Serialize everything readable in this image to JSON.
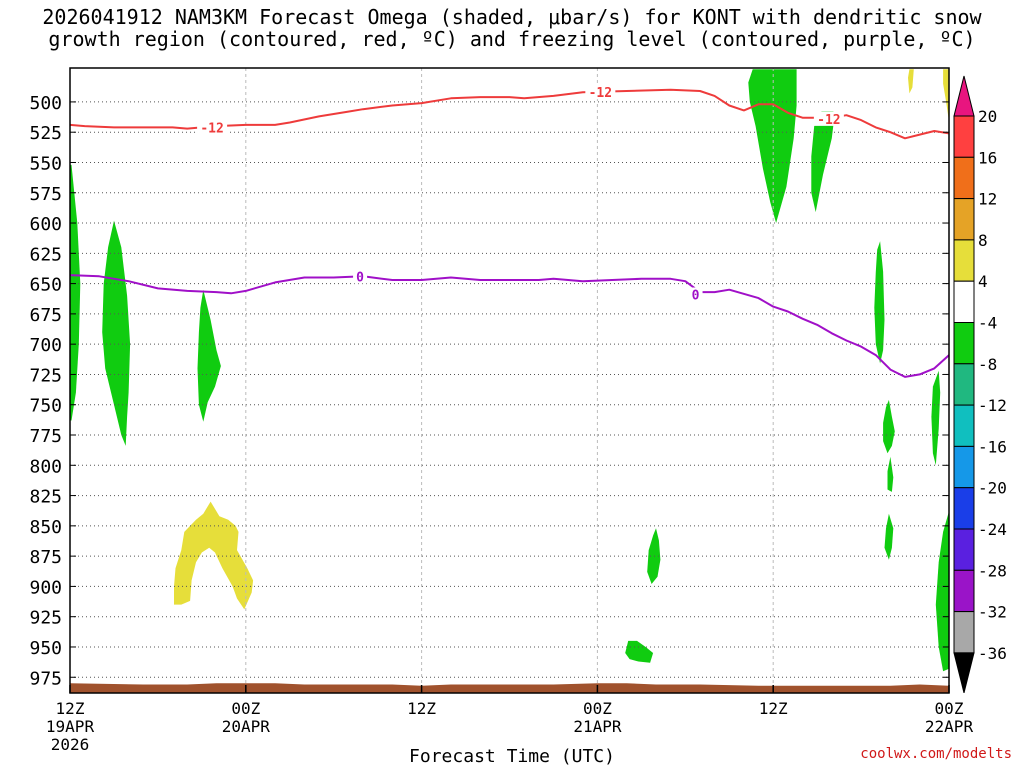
{
  "title": {
    "line1": "2026041912 NAM3KM Forecast Omega (shaded, μbar/s) for KONT with dendritic snow",
    "line2": "growth region (contoured, red, ºC) and freezing level (contoured, purple, ºC)"
  },
  "credit": "coolwx.com/modelts",
  "chart_data": {
    "type": "area",
    "title": "2026041912 NAM3KM Forecast Omega (shaded, μbar/s) for KONT with dendritic snow growth region (contoured, red, ºC) and freezing level (contoured, purple, ºC)",
    "xlabel": "Forecast Time (UTC)",
    "ylabel": "",
    "xlim_hours": [
      0,
      60
    ],
    "ylim_hPa": [
      988,
      472
    ],
    "y_axis": "pressure (hPa), reversed",
    "grid": true,
    "x_ticks": [
      {
        "hour": 0,
        "label": "12Z",
        "sub1": "19APR",
        "sub2": "2026"
      },
      {
        "hour": 12,
        "label": "00Z",
        "sub1": "20APR",
        "sub2": ""
      },
      {
        "hour": 24,
        "label": "12Z",
        "sub1": "",
        "sub2": ""
      },
      {
        "hour": 36,
        "label": "00Z",
        "sub1": "21APR",
        "sub2": ""
      },
      {
        "hour": 48,
        "label": "12Z",
        "sub1": "",
        "sub2": ""
      },
      {
        "hour": 60,
        "label": "00Z",
        "sub1": "22APR",
        "sub2": ""
      }
    ],
    "y_ticks": [
      500,
      525,
      550,
      575,
      600,
      625,
      650,
      675,
      700,
      725,
      750,
      775,
      800,
      825,
      850,
      875,
      900,
      925,
      950,
      975
    ],
    "colorbar": {
      "labels": [
        "20",
        "16",
        "12",
        "8",
        "4",
        "-4",
        "-8",
        "-12",
        "-16",
        "-20",
        "-24",
        "-28",
        "-32",
        "-36"
      ],
      "bins": [
        {
          "color": "#e8157f"
        },
        {
          "color": "#ff4040"
        },
        {
          "color": "#f06f1a"
        },
        {
          "color": "#e5a326"
        },
        {
          "color": "#e6de3a"
        },
        {
          "color": "#ffffff"
        },
        {
          "color": "#10cc10"
        },
        {
          "color": "#20b880"
        },
        {
          "color": "#10bfbf"
        },
        {
          "color": "#1598e8"
        },
        {
          "color": "#1a3ee8"
        },
        {
          "color": "#5a20e0"
        },
        {
          "color": "#9a14c8"
        },
        {
          "color": "#a8a8a8"
        },
        {
          "color": "#000000"
        }
      ]
    },
    "series": [
      {
        "name": "-12",
        "color": "#ee3b3b",
        "label_points": [
          [
            9.7,
            521
          ],
          [
            36.2,
            492
          ],
          [
            51.8,
            514
          ]
        ],
        "points": [
          [
            0,
            519
          ],
          [
            1,
            520
          ],
          [
            3,
            521
          ],
          [
            5,
            521
          ],
          [
            7,
            521
          ],
          [
            8,
            522
          ],
          [
            9,
            521
          ],
          [
            10,
            520
          ],
          [
            12,
            519
          ],
          [
            14,
            519
          ],
          [
            15,
            517
          ],
          [
            17,
            512
          ],
          [
            19,
            508
          ],
          [
            20,
            506
          ],
          [
            22,
            503
          ],
          [
            24,
            501
          ],
          [
            26,
            497
          ],
          [
            28,
            496
          ],
          [
            30,
            496
          ],
          [
            31,
            497
          ],
          [
            33,
            495
          ],
          [
            35,
            492
          ],
          [
            38,
            491
          ],
          [
            41,
            490
          ],
          [
            43,
            491
          ],
          [
            44,
            495
          ],
          [
            45,
            503
          ],
          [
            46,
            507
          ],
          [
            47,
            502
          ],
          [
            48,
            502
          ],
          [
            49,
            509
          ],
          [
            50,
            513
          ],
          [
            52,
            513
          ],
          [
            53,
            511
          ],
          [
            54,
            515
          ],
          [
            55,
            521
          ],
          [
            56,
            525
          ],
          [
            57,
            530
          ],
          [
            58,
            527
          ],
          [
            59,
            524
          ],
          [
            60,
            526
          ]
        ]
      },
      {
        "name": "0",
        "color": "#a010c8",
        "label_points": [
          [
            19.8,
            644
          ],
          [
            42.7,
            659
          ]
        ],
        "points": [
          [
            0,
            643
          ],
          [
            2,
            644
          ],
          [
            4,
            648
          ],
          [
            6,
            654
          ],
          [
            8,
            656
          ],
          [
            10,
            657
          ],
          [
            11,
            658
          ],
          [
            12,
            656
          ],
          [
            14,
            649
          ],
          [
            16,
            645
          ],
          [
            18,
            645
          ],
          [
            20,
            644
          ],
          [
            22,
            647
          ],
          [
            24,
            647
          ],
          [
            26,
            645
          ],
          [
            28,
            647
          ],
          [
            30,
            647
          ],
          [
            32,
            647
          ],
          [
            33,
            646
          ],
          [
            35,
            648
          ],
          [
            37,
            647
          ],
          [
            39,
            646
          ],
          [
            41,
            646
          ],
          [
            42,
            648
          ],
          [
            43,
            657
          ],
          [
            44,
            657
          ],
          [
            45,
            655
          ],
          [
            47,
            662
          ],
          [
            48,
            669
          ],
          [
            49,
            673
          ],
          [
            50,
            679
          ],
          [
            51,
            684
          ],
          [
            52,
            691
          ],
          [
            53,
            697
          ],
          [
            54,
            702
          ],
          [
            55,
            709
          ],
          [
            56,
            721
          ],
          [
            57,
            727
          ],
          [
            58,
            725
          ],
          [
            59,
            720
          ],
          [
            60,
            709
          ]
        ]
      }
    ],
    "shaded": [
      {
        "value_range": "-8 to -4",
        "color": "#10cc10",
        "points": [
          [
            0.1,
            552
          ],
          [
            0.5,
            600
          ],
          [
            0.7,
            650
          ],
          [
            0.6,
            700
          ],
          [
            0.4,
            740
          ],
          [
            0.1,
            763
          ],
          [
            0,
            763
          ],
          [
            0,
            552
          ]
        ]
      },
      {
        "value_range": "-8 to -4",
        "color": "#10cc10",
        "points": [
          [
            3.0,
            598
          ],
          [
            3.5,
            620
          ],
          [
            3.9,
            660
          ],
          [
            4.1,
            700
          ],
          [
            4.0,
            740
          ],
          [
            3.9,
            760
          ],
          [
            3.8,
            784
          ],
          [
            3.5,
            775
          ],
          [
            3.0,
            750
          ],
          [
            2.4,
            720
          ],
          [
            2.2,
            690
          ],
          [
            2.3,
            650
          ],
          [
            2.6,
            620
          ]
        ]
      },
      {
        "value_range": "-8 to -4",
        "color": "#10cc10",
        "points": [
          [
            9.1,
            655
          ],
          [
            9.6,
            680
          ],
          [
            10.0,
            705
          ],
          [
            10.3,
            718
          ],
          [
            9.9,
            735
          ],
          [
            9.4,
            748
          ],
          [
            9.1,
            764
          ],
          [
            8.8,
            750
          ],
          [
            8.7,
            720
          ],
          [
            8.8,
            690
          ],
          [
            8.9,
            670
          ]
        ]
      },
      {
        "value_range": "4 to 8",
        "color": "#e6de3a",
        "points": [
          [
            7.1,
            900
          ],
          [
            7.2,
            885
          ],
          [
            7.6,
            870
          ],
          [
            7.8,
            855
          ],
          [
            8.6,
            845
          ],
          [
            9.1,
            840
          ],
          [
            9.6,
            830
          ],
          [
            10.2,
            842
          ],
          [
            10.8,
            845
          ],
          [
            11.3,
            850
          ],
          [
            11.5,
            855
          ],
          [
            11.4,
            870
          ],
          [
            12.1,
            885
          ],
          [
            12.5,
            895
          ],
          [
            12.4,
            905
          ],
          [
            11.9,
            919
          ],
          [
            11.4,
            910
          ],
          [
            11.1,
            900
          ],
          [
            10.4,
            885
          ],
          [
            9.9,
            872
          ],
          [
            9.5,
            868
          ],
          [
            9.0,
            872
          ],
          [
            8.6,
            880
          ],
          [
            8.3,
            895
          ],
          [
            8.2,
            912
          ],
          [
            7.6,
            915
          ],
          [
            7.1,
            915
          ]
        ]
      },
      {
        "value_range": "-8 to -4",
        "color": "#10cc10",
        "points": [
          [
            38.1,
            945
          ],
          [
            38.7,
            945
          ],
          [
            39.3,
            950
          ],
          [
            39.8,
            955
          ],
          [
            39.6,
            963
          ],
          [
            38.8,
            962
          ],
          [
            38.2,
            960
          ],
          [
            37.9,
            955
          ]
        ]
      },
      {
        "value_range": "-8 to -4",
        "color": "#10cc10",
        "points": [
          [
            40.0,
            852
          ],
          [
            40.2,
            862
          ],
          [
            40.3,
            878
          ],
          [
            40.1,
            892
          ],
          [
            39.7,
            898
          ],
          [
            39.4,
            888
          ],
          [
            39.5,
            870
          ],
          [
            39.8,
            858
          ]
        ]
      },
      {
        "value_range": "-8 to -4",
        "color": "#10cc10",
        "points": [
          [
            48.0,
            473
          ],
          [
            49.6,
            473
          ],
          [
            49.6,
            503
          ],
          [
            49.4,
            530
          ],
          [
            48.9,
            570
          ],
          [
            48.2,
            600
          ],
          [
            47.8,
            583
          ],
          [
            47.3,
            555
          ],
          [
            46.8,
            520
          ],
          [
            46.4,
            500
          ],
          [
            46.3,
            484
          ],
          [
            46.6,
            473
          ]
        ]
      },
      {
        "value_range": "-8 to -4",
        "color": "#10cc10",
        "points": [
          [
            51.3,
            508
          ],
          [
            52.1,
            508
          ],
          [
            52.2,
            510
          ],
          [
            52.0,
            530
          ],
          [
            51.4,
            560
          ],
          [
            50.9,
            591
          ],
          [
            50.6,
            575
          ],
          [
            50.6,
            545
          ],
          [
            50.8,
            520
          ]
        ]
      },
      {
        "value_range": "-8 to -4",
        "color": "#10cc10",
        "points": [
          [
            55.3,
            615
          ],
          [
            55.5,
            640
          ],
          [
            55.6,
            680
          ],
          [
            55.5,
            705
          ],
          [
            55.3,
            716
          ],
          [
            55.0,
            700
          ],
          [
            54.9,
            670
          ],
          [
            55.0,
            640
          ],
          [
            55.1,
            622
          ]
        ]
      },
      {
        "value_range": "-8 to -4",
        "color": "#10cc10",
        "points": [
          [
            55.9,
            746
          ],
          [
            56.1,
            760
          ],
          [
            56.3,
            772
          ],
          [
            56.1,
            784
          ],
          [
            55.8,
            790
          ],
          [
            55.5,
            780
          ],
          [
            55.5,
            765
          ],
          [
            55.7,
            752
          ]
        ]
      },
      {
        "value_range": "-8 to -4",
        "color": "#10cc10",
        "points": [
          [
            56.0,
            793
          ],
          [
            56.2,
            810
          ],
          [
            56.1,
            822
          ],
          [
            55.8,
            820
          ],
          [
            55.8,
            805
          ]
        ]
      },
      {
        "value_range": "-8 to -4",
        "color": "#10cc10",
        "points": [
          [
            55.9,
            840
          ],
          [
            56.2,
            852
          ],
          [
            56.1,
            868
          ],
          [
            55.9,
            878
          ],
          [
            55.6,
            868
          ],
          [
            55.7,
            852
          ]
        ]
      },
      {
        "value_range": "-8 to -4",
        "color": "#10cc10",
        "points": [
          [
            59.3,
            722
          ],
          [
            59.4,
            740
          ],
          [
            59.3,
            770
          ],
          [
            59.1,
            800
          ],
          [
            58.9,
            790
          ],
          [
            58.8,
            760
          ],
          [
            58.9,
            735
          ]
        ]
      },
      {
        "value_range": "-8 to -4",
        "color": "#10cc10",
        "points": [
          [
            60,
            838
          ],
          [
            60,
            968
          ],
          [
            59.6,
            970
          ],
          [
            59.3,
            950
          ],
          [
            59.1,
            915
          ],
          [
            59.3,
            880
          ],
          [
            59.6,
            855
          ]
        ]
      },
      {
        "value_range": "4 to 8",
        "color": "#e6de3a",
        "points": [
          [
            57.3,
            473
          ],
          [
            57.6,
            473
          ],
          [
            57.5,
            488
          ],
          [
            57.3,
            493
          ],
          [
            57.2,
            480
          ]
        ]
      },
      {
        "value_range": "4 to 8",
        "color": "#e6de3a",
        "points": [
          [
            59.6,
            473
          ],
          [
            60,
            473
          ],
          [
            60,
            516
          ],
          [
            59.8,
            500
          ],
          [
            59.6,
            485
          ]
        ]
      }
    ],
    "terrain": {
      "color": "#a0522d",
      "top_hPa": [
        [
          0,
          980
        ],
        [
          5,
          981
        ],
        [
          8,
          981
        ],
        [
          10,
          980
        ],
        [
          12,
          980
        ],
        [
          14,
          980
        ],
        [
          16,
          981
        ],
        [
          19,
          981
        ],
        [
          22,
          981
        ],
        [
          24,
          982
        ],
        [
          26,
          981
        ],
        [
          29,
          981
        ],
        [
          33,
          981
        ],
        [
          36,
          980
        ],
        [
          38,
          980
        ],
        [
          40,
          981
        ],
        [
          43,
          981
        ],
        [
          47,
          982
        ],
        [
          52,
          982
        ],
        [
          56,
          982
        ],
        [
          58,
          981
        ],
        [
          60,
          982
        ]
      ]
    }
  }
}
